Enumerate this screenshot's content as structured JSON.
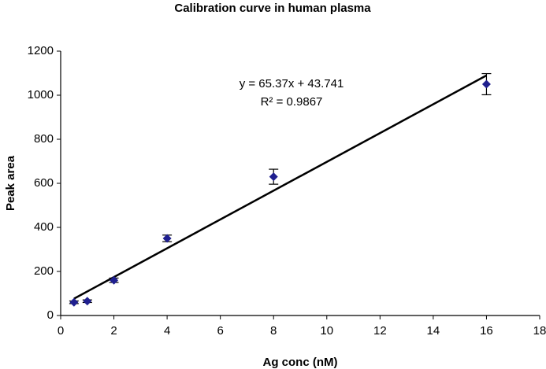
{
  "chart_data": {
    "type": "scatter",
    "title": "Calibration curve in human plasma",
    "x_label": "Ag conc (nM)",
    "y_label": "Peak area",
    "series": [
      {
        "name": "Peak area",
        "color": "#1f1f8f",
        "x": [
          0.5,
          1,
          2,
          4,
          8,
          16
        ],
        "values": [
          60,
          65,
          160,
          350,
          630,
          1050
        ],
        "errors": [
          6,
          6,
          10,
          15,
          34,
          48
        ]
      }
    ],
    "trendline": {
      "slope": 65.37,
      "intercept": 43.741,
      "color": "#000000",
      "equation": "y = 65.37x + 43.741",
      "r_squared": "R² = 0.9867"
    },
    "xlim": [
      0,
      18
    ],
    "xticks": [
      0,
      2,
      4,
      6,
      8,
      10,
      12,
      14,
      16,
      18
    ],
    "ylim": [
      0,
      1200
    ],
    "yticks": [
      0,
      200,
      400,
      600,
      800,
      1000,
      1200
    ],
    "grid": false
  }
}
